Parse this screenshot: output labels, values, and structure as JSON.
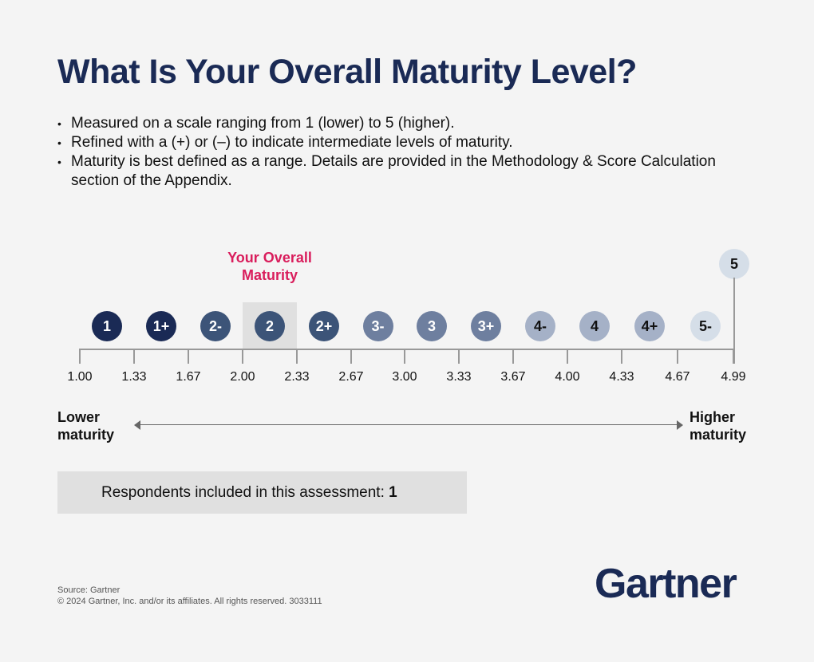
{
  "title": "What Is Your Overall Maturity Level?",
  "bullets": [
    "Measured on a scale ranging from 1 (lower) to 5 (higher).",
    "Refined with a (+) or (–) to indicate intermediate levels of maturity.",
    "Maturity is best defined as a range. Details are provided in the Methodology & Score Calculation section of the Appendix."
  ],
  "your_maturity_label": "Your Overall Maturity",
  "current_level": "2",
  "levels": [
    {
      "label": "1",
      "bg": "#1a2a55",
      "fg": "#ffffff"
    },
    {
      "label": "1+",
      "bg": "#1a2a55",
      "fg": "#ffffff"
    },
    {
      "label": "2-",
      "bg": "#3c5478",
      "fg": "#ffffff"
    },
    {
      "label": "2",
      "bg": "#3c5478",
      "fg": "#ffffff"
    },
    {
      "label": "2+",
      "bg": "#3c5478",
      "fg": "#ffffff"
    },
    {
      "label": "3-",
      "bg": "#6e7f9f",
      "fg": "#ffffff"
    },
    {
      "label": "3",
      "bg": "#6e7f9f",
      "fg": "#ffffff"
    },
    {
      "label": "3+",
      "bg": "#6e7f9f",
      "fg": "#ffffff"
    },
    {
      "label": "4-",
      "bg": "#a5b1c7",
      "fg": "#111111"
    },
    {
      "label": "4",
      "bg": "#a5b1c7",
      "fg": "#111111"
    },
    {
      "label": "4+",
      "bg": "#a5b1c7",
      "fg": "#111111"
    },
    {
      "label": "5-",
      "bg": "#d5dee8",
      "fg": "#111111"
    }
  ],
  "top_level": {
    "label": "5",
    "bg": "#d5dee8",
    "fg": "#111111"
  },
  "ticks": [
    "1.00",
    "1.33",
    "1.67",
    "2.00",
    "2.33",
    "2.67",
    "3.00",
    "3.33",
    "3.67",
    "4.00",
    "4.33",
    "4.67",
    "4.99"
  ],
  "lower_label": "Lower maturity",
  "higher_label": "Higher maturity",
  "respondents": {
    "label": "Respondents included in this assessment:",
    "value": "1"
  },
  "footer": {
    "source": "Source: Gartner",
    "copyright": "© 2024 Gartner, Inc. and/or its affiliates. All rights reserved. 3033111"
  },
  "logo": "Gartner"
}
